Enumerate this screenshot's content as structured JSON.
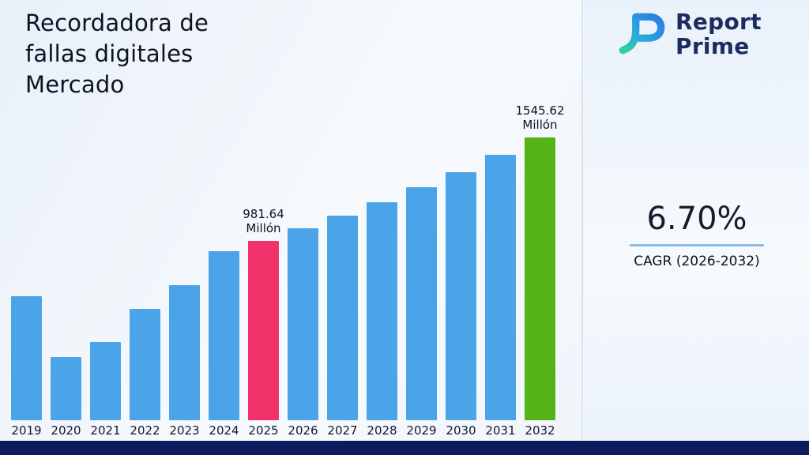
{
  "header": {
    "title": "Recordadora de\nfallas digitales\nMercado"
  },
  "logo": {
    "line1": "Report",
    "line2": "Prime"
  },
  "stats": {
    "cagr_value": "6.70%",
    "cagr_label": "CAGR (2026-2032)"
  },
  "colors": {
    "bar_blue": "#4ba4e8",
    "bar_pink": "#f2326b",
    "bar_green": "#53b317",
    "footer_navy": "#0c1b5e",
    "accent_line": "#8fb9e0",
    "logo_navy": "#1d2c5e"
  },
  "chart_data": {
    "type": "bar",
    "title": "Recordadora de fallas digitales Mercado",
    "unit": "Millón",
    "ylabel": "",
    "xlabel": "",
    "ylim": [
      0,
      1600
    ],
    "grid": false,
    "legend": false,
    "categories": [
      "2019",
      "2020",
      "2021",
      "2022",
      "2023",
      "2024",
      "2025",
      "2026",
      "2027",
      "2028",
      "2029",
      "2030",
      "2031",
      "2032"
    ],
    "values": [
      678,
      346,
      428,
      610,
      739,
      925,
      981.64,
      1047.41,
      1117.59,
      1192.47,
      1272.36,
      1357.61,
      1448.57,
      1545.62
    ],
    "bar_default_color": "#4ba4e8",
    "highlights": [
      {
        "category": "2025",
        "color": "#f2326b",
        "label_value": "981.64",
        "label_unit": "Millón"
      },
      {
        "category": "2032",
        "color": "#53b317",
        "label_value": "1545.62",
        "label_unit": "Millón"
      }
    ],
    "annotations": [
      {
        "category": "2025",
        "text": "981.64 Millón"
      },
      {
        "category": "2032",
        "text": "1545.62 Millón"
      }
    ]
  }
}
